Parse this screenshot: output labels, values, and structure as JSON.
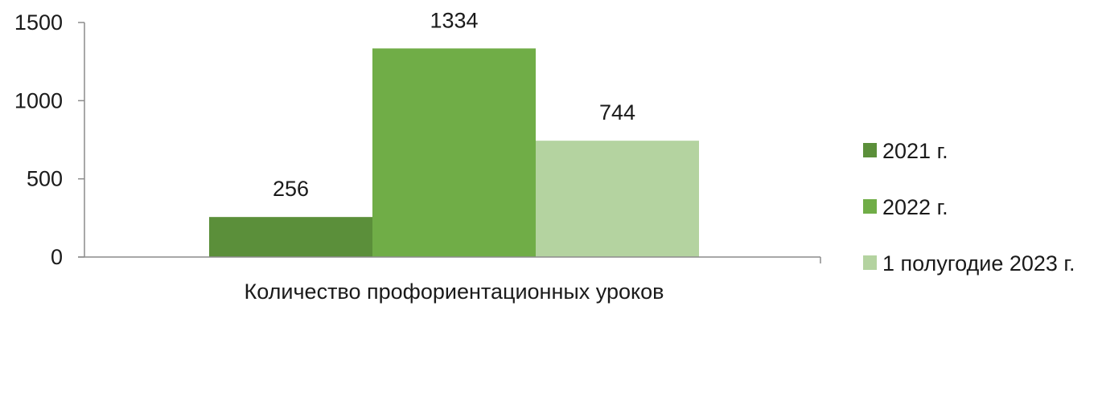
{
  "chart_data": {
    "type": "bar",
    "categories": [
      "Количество профориентационных уроков"
    ],
    "series": [
      {
        "name": "2021 г.",
        "values": [
          256
        ],
        "color": "#5b8f3a"
      },
      {
        "name": "2022 г.",
        "values": [
          1334
        ],
        "color": "#70ad47"
      },
      {
        "name": "1 полугодие 2023 г.",
        "values": [
          744
        ],
        "color": "#b4d3a0"
      }
    ],
    "ylim": [
      0,
      1500
    ],
    "yticks": [
      "0",
      "500",
      "1000",
      "1500"
    ],
    "grid": false,
    "legend": "right",
    "data_labels": true
  }
}
